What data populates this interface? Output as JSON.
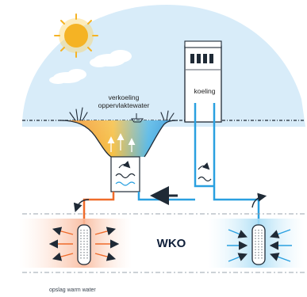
{
  "labels": {
    "pond_line1": "verkoeling",
    "pond_line2": "oppervlaktewater",
    "building": "koeling",
    "system": "WKO",
    "storage": "opslag warm water"
  },
  "icons": {
    "sun": "sun-icon",
    "clouds": "cloud-icon",
    "building": "office-building-icon",
    "heat_exchanger": "heat-exchanger-icon",
    "flow_arrow": "flow-arrow-icon",
    "well": "well-icon"
  },
  "colors": {
    "sky": "#d6ebf8",
    "sun": "#f5b324",
    "warm": "#ef6b2a",
    "cold": "#2aa0e0",
    "ground": "#f4f6f8",
    "outline": "#1f2a36"
  }
}
